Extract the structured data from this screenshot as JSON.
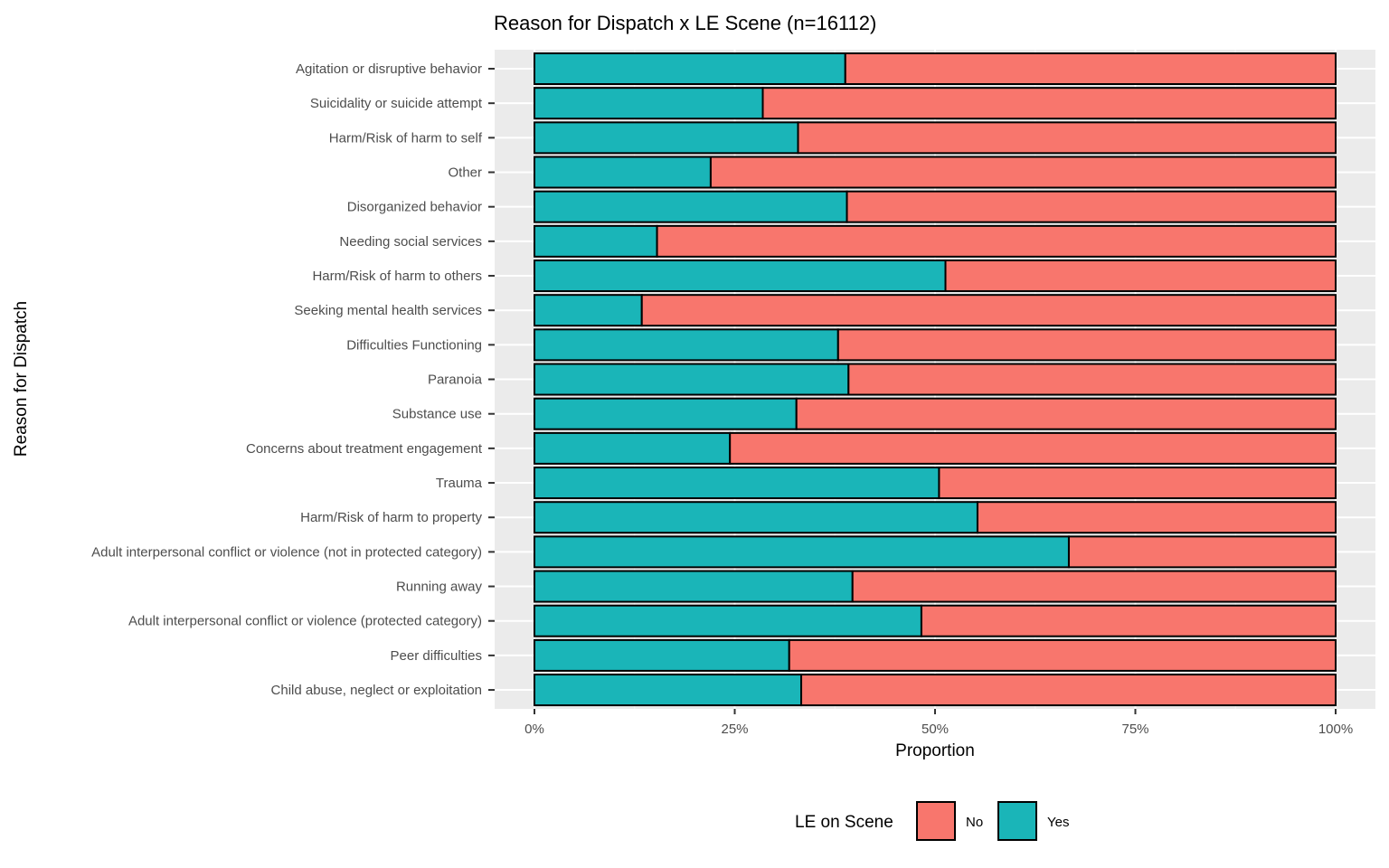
{
  "chart_data": {
    "type": "bar",
    "orientation": "horizontal",
    "stacked": true,
    "title": "Reason for Dispatch x LE Scene (n=16112)",
    "xlabel": "Proportion",
    "ylabel": "Reason for Dispatch",
    "xlim": [
      0,
      1
    ],
    "x_ticks": [
      "0%",
      "25%",
      "50%",
      "75%",
      "100%"
    ],
    "grid": true,
    "legend": {
      "title": "LE on Scene",
      "position": "bottom"
    },
    "categories": [
      "Agitation or disruptive behavior",
      "Suicidality or suicide attempt",
      "Harm/Risk of harm to self",
      "Other",
      "Disorganized behavior",
      "Needing social services",
      "Harm/Risk of harm to others",
      "Seeking mental health services",
      "Difficulties Functioning",
      "Paranoia",
      "Substance use",
      "Concerns about treatment engagement",
      "Trauma",
      "Harm/Risk of harm to property",
      "Adult interpersonal conflict or violence (not in protected category)",
      "Running away",
      "Adult interpersonal conflict or violence (protected category)",
      "Peer difficulties",
      "Child abuse, neglect or exploitation"
    ],
    "series": [
      {
        "name": "No",
        "color": "#F8766D",
        "values": [
          0.612,
          0.715,
          0.671,
          0.78,
          0.61,
          0.847,
          0.487,
          0.866,
          0.621,
          0.608,
          0.673,
          0.756,
          0.495,
          0.447,
          0.333,
          0.603,
          0.517,
          0.682,
          0.667
        ]
      },
      {
        "name": "Yes",
        "color": "#1AB5B8",
        "values": [
          0.388,
          0.285,
          0.329,
          0.22,
          0.39,
          0.153,
          0.513,
          0.134,
          0.379,
          0.392,
          0.327,
          0.244,
          0.505,
          0.553,
          0.667,
          0.397,
          0.483,
          0.318,
          0.333
        ]
      }
    ]
  }
}
